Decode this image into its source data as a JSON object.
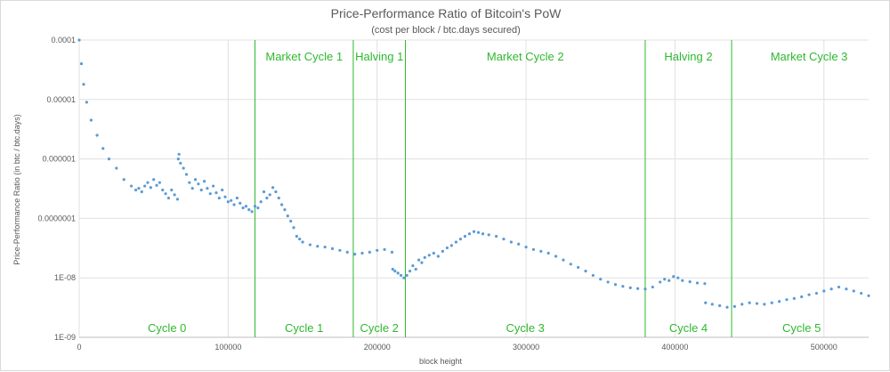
{
  "chart_data": {
    "type": "scatter",
    "title": "Price-Performance Ratio of Bitcoin's PoW",
    "subtitle": "(cost per block / btc.days secured)",
    "xlabel": "block height",
    "ylabel": "Price-Performance Ratio (in btc / btc.days)",
    "scale_y": "log",
    "xlim": [
      0,
      530000
    ],
    "ylim": [
      1e-09,
      0.0001
    ],
    "x_ticks": [
      0,
      100000,
      200000,
      300000,
      400000,
      500000
    ],
    "x_tick_labels": [
      "0",
      "100000",
      "200000",
      "300000",
      "400000",
      "500000"
    ],
    "y_ticks": [
      1e-09,
      1e-08,
      1e-07,
      1e-06,
      1e-05,
      0.0001
    ],
    "y_tick_labels": [
      "1E-09",
      "1E-08",
      "0.0000001",
      "0.000001",
      "0.00001",
      "0.0001"
    ],
    "grid": true,
    "series_color": "#5b9bd5",
    "annotation_color": "#2eb82e",
    "vertical_lines": [
      118000,
      184000,
      219000,
      380000,
      438000
    ],
    "top_labels": [
      {
        "text": "Market Cycle 1",
        "x": 151000
      },
      {
        "text": "Halving 1",
        "x": 201500
      },
      {
        "text": "Market Cycle 2",
        "x": 299500
      },
      {
        "text": "Halving 2",
        "x": 409000
      },
      {
        "text": "Market Cycle 3",
        "x": 490000
      }
    ],
    "bottom_labels": [
      {
        "text": "Cycle 0",
        "x": 59000
      },
      {
        "text": "Cycle 1",
        "x": 151000
      },
      {
        "text": "Cycle 2",
        "x": 201500
      },
      {
        "text": "Cycle 3",
        "x": 299500
      },
      {
        "text": "Cycle 4",
        "x": 409000
      },
      {
        "text": "Cycle 5",
        "x": 485000
      }
    ],
    "points": [
      [
        0,
        0.0001
      ],
      [
        1500,
        4e-05
      ],
      [
        3000,
        1.8e-05
      ],
      [
        5000,
        9e-06
      ],
      [
        8000,
        4.5e-06
      ],
      [
        12000,
        2.5e-06
      ],
      [
        16000,
        1.5e-06
      ],
      [
        20000,
        1e-06
      ],
      [
        25000,
        7e-07
      ],
      [
        30000,
        4.5e-07
      ],
      [
        35000,
        3.5e-07
      ],
      [
        38000,
        3e-07
      ],
      [
        40000,
        3.2e-07
      ],
      [
        42000,
        2.8e-07
      ],
      [
        44000,
        3.5e-07
      ],
      [
        46000,
        4e-07
      ],
      [
        48000,
        3.3e-07
      ],
      [
        50000,
        4.5e-07
      ],
      [
        52000,
        3.6e-07
      ],
      [
        54000,
        4e-07
      ],
      [
        56000,
        3e-07
      ],
      [
        58000,
        2.6e-07
      ],
      [
        60000,
        2.2e-07
      ],
      [
        62000,
        3e-07
      ],
      [
        64000,
        2.5e-07
      ],
      [
        66000,
        2.1e-07
      ],
      [
        66500,
        1e-06
      ],
      [
        67000,
        1.2e-06
      ],
      [
        68000,
        8.5e-07
      ],
      [
        70000,
        7e-07
      ],
      [
        72000,
        5.5e-07
      ],
      [
        74000,
        4e-07
      ],
      [
        76000,
        3.2e-07
      ],
      [
        78000,
        4.5e-07
      ],
      [
        80000,
        3.8e-07
      ],
      [
        82000,
        3e-07
      ],
      [
        84000,
        4.2e-07
      ],
      [
        86000,
        3.2e-07
      ],
      [
        88000,
        2.6e-07
      ],
      [
        90000,
        3.5e-07
      ],
      [
        92000,
        2.7e-07
      ],
      [
        94000,
        2.2e-07
      ],
      [
        96000,
        3e-07
      ],
      [
        98000,
        2.3e-07
      ],
      [
        100000,
        1.9e-07
      ],
      [
        102000,
        2e-07
      ],
      [
        104000,
        1.7e-07
      ],
      [
        106000,
        2.2e-07
      ],
      [
        108000,
        1.8e-07
      ],
      [
        110000,
        1.5e-07
      ],
      [
        112000,
        1.6e-07
      ],
      [
        114000,
        1.4e-07
      ],
      [
        116000,
        1.3e-07
      ],
      [
        118000,
        1.6e-07
      ],
      [
        120000,
        1.5e-07
      ],
      [
        122000,
        1.9e-07
      ],
      [
        124000,
        2.8e-07
      ],
      [
        126000,
        2.2e-07
      ],
      [
        128000,
        2.5e-07
      ],
      [
        130000,
        3.3e-07
      ],
      [
        132000,
        2.8e-07
      ],
      [
        134000,
        2.2e-07
      ],
      [
        136000,
        1.7e-07
      ],
      [
        138000,
        1.4e-07
      ],
      [
        140000,
        1.1e-07
      ],
      [
        142000,
        9e-08
      ],
      [
        144000,
        7e-08
      ],
      [
        146000,
        5e-08
      ],
      [
        148000,
        4.5e-08
      ],
      [
        150000,
        4e-08
      ],
      [
        155000,
        3.6e-08
      ],
      [
        160000,
        3.4e-08
      ],
      [
        165000,
        3.3e-08
      ],
      [
        170000,
        3.1e-08
      ],
      [
        175000,
        2.9e-08
      ],
      [
        180000,
        2.7e-08
      ],
      [
        185000,
        2.5e-08
      ],
      [
        190000,
        2.6e-08
      ],
      [
        195000,
        2.7e-08
      ],
      [
        200000,
        2.9e-08
      ],
      [
        205000,
        3e-08
      ],
      [
        210000,
        2.7e-08
      ],
      [
        210500,
        1.4e-08
      ],
      [
        212000,
        1.3e-08
      ],
      [
        214000,
        1.2e-08
      ],
      [
        216000,
        1.1e-08
      ],
      [
        218000,
        1e-08
      ],
      [
        220000,
        1.1e-08
      ],
      [
        222000,
        1.3e-08
      ],
      [
        224000,
        1.6e-08
      ],
      [
        226000,
        1.4e-08
      ],
      [
        228000,
        2e-08
      ],
      [
        230000,
        1.8e-08
      ],
      [
        232000,
        2.2e-08
      ],
      [
        235000,
        2.4e-08
      ],
      [
        238000,
        2.6e-08
      ],
      [
        241000,
        2.3e-08
      ],
      [
        244000,
        2.8e-08
      ],
      [
        247000,
        3.2e-08
      ],
      [
        250000,
        3.5e-08
      ],
      [
        253000,
        4e-08
      ],
      [
        256000,
        4.5e-08
      ],
      [
        259000,
        5e-08
      ],
      [
        262000,
        5.5e-08
      ],
      [
        265000,
        6e-08
      ],
      [
        268000,
        5.8e-08
      ],
      [
        271000,
        5.5e-08
      ],
      [
        275000,
        5.3e-08
      ],
      [
        280000,
        5e-08
      ],
      [
        285000,
        4.5e-08
      ],
      [
        290000,
        4e-08
      ],
      [
        295000,
        3.7e-08
      ],
      [
        300000,
        3.3e-08
      ],
      [
        305000,
        3e-08
      ],
      [
        310000,
        2.8e-08
      ],
      [
        315000,
        2.6e-08
      ],
      [
        320000,
        2.3e-08
      ],
      [
        325000,
        2e-08
      ],
      [
        330000,
        1.7e-08
      ],
      [
        335000,
        1.5e-08
      ],
      [
        340000,
        1.3e-08
      ],
      [
        345000,
        1.1e-08
      ],
      [
        350000,
        9.5e-09
      ],
      [
        355000,
        8.5e-09
      ],
      [
        360000,
        7.7e-09
      ],
      [
        365000,
        7.2e-09
      ],
      [
        370000,
        6.8e-09
      ],
      [
        375000,
        6.6e-09
      ],
      [
        380000,
        6.5e-09
      ],
      [
        385000,
        7e-09
      ],
      [
        390000,
        8.5e-09
      ],
      [
        393000,
        9.5e-09
      ],
      [
        396000,
        9e-09
      ],
      [
        399000,
        1.05e-08
      ],
      [
        402000,
        1e-08
      ],
      [
        405000,
        9e-09
      ],
      [
        410000,
        8.6e-09
      ],
      [
        415000,
        8.2e-09
      ],
      [
        420000,
        8e-09
      ],
      [
        420500,
        3.8e-09
      ],
      [
        425000,
        3.6e-09
      ],
      [
        430000,
        3.4e-09
      ],
      [
        435000,
        3.2e-09
      ],
      [
        440000,
        3.3e-09
      ],
      [
        445000,
        3.6e-09
      ],
      [
        450000,
        3.8e-09
      ],
      [
        455000,
        3.7e-09
      ],
      [
        460000,
        3.6e-09
      ],
      [
        465000,
        3.8e-09
      ],
      [
        470000,
        4e-09
      ],
      [
        475000,
        4.3e-09
      ],
      [
        480000,
        4.5e-09
      ],
      [
        485000,
        4.8e-09
      ],
      [
        490000,
        5.2e-09
      ],
      [
        495000,
        5.5e-09
      ],
      [
        500000,
        6e-09
      ],
      [
        505000,
        6.5e-09
      ],
      [
        510000,
        7e-09
      ],
      [
        515000,
        6.5e-09
      ],
      [
        520000,
        6e-09
      ],
      [
        525000,
        5.5e-09
      ],
      [
        530000,
        5e-09
      ]
    ]
  }
}
